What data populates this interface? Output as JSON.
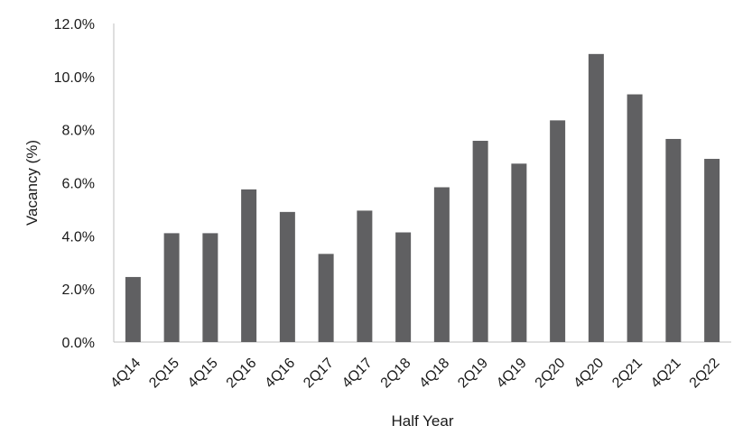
{
  "chart_data": {
    "type": "bar",
    "title": "",
    "xlabel": "Half Year",
    "ylabel": "Vacancy (%)",
    "categories": [
      "4Q14",
      "2Q15",
      "4Q15",
      "2Q16",
      "4Q16",
      "2Q17",
      "4Q17",
      "2Q18",
      "4Q18",
      "2Q19",
      "4Q19",
      "2Q20",
      "4Q20",
      "2Q21",
      "4Q21",
      "2Q22"
    ],
    "values": [
      2.45,
      4.1,
      4.1,
      5.75,
      4.9,
      3.32,
      4.95,
      4.13,
      5.83,
      7.58,
      6.72,
      8.35,
      10.85,
      9.33,
      7.65,
      6.9
    ],
    "ylim": [
      0,
      12
    ],
    "yticks": [
      "0.0%",
      "2.0%",
      "4.0%",
      "6.0%",
      "8.0%",
      "10.0%",
      "12.0%"
    ],
    "grid": false,
    "legend": "none",
    "bar_color": "#606062",
    "axis_color": "#bfbfbf"
  }
}
